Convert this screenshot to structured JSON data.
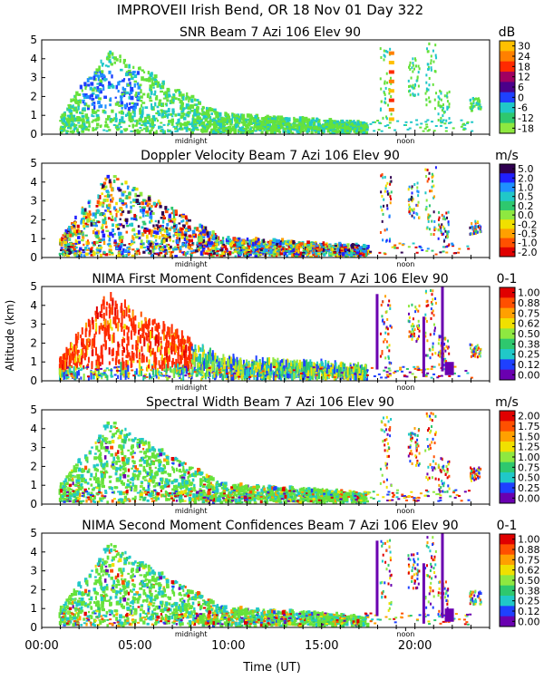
{
  "title": "IMPROVEII  Irish Bend, OR  18 Nov 01 Day 322",
  "y_axis_label": "Altitude (km)",
  "x_axis_label": "Time (UT)",
  "marker_midnight": "midnight",
  "marker_noon": "noon",
  "colors": {
    "background": "#ffffff",
    "axes": "#000000",
    "echo_green": "#66e23a",
    "echo_cyan": "#20c8c8",
    "echo_blue": "#1e40ff",
    "echo_red": "#ff2a00",
    "echo_purple": "#6a00b0"
  },
  "chart_data": [
    {
      "type": "heatmap",
      "panel": "snr",
      "title": "SNR Beam 7 Azi 106 Elev 90",
      "units": "dB",
      "xlim": [
        0,
        24
      ],
      "ylim": [
        0,
        5
      ],
      "x_ticks": [
        "00:00",
        "05:00",
        "10:00",
        "15:00",
        "20:00"
      ],
      "y_ticks": [
        "0",
        "1",
        "2",
        "3",
        "4",
        "5"
      ],
      "colorbar": {
        "labels": [
          "30",
          "24",
          "18",
          "12",
          "6",
          "0",
          "-6",
          "-12",
          "-18"
        ],
        "colors": [
          "#ffc000",
          "#ff8000",
          "#ff2a00",
          "#a00060",
          "#4b008a",
          "#1e40ff",
          "#20c8c8",
          "#2ec86e",
          "#8ee840"
        ]
      }
    },
    {
      "type": "heatmap",
      "panel": "doppler",
      "title": "Doppler Velocity Beam 7 Azi 106 Elev 90",
      "units": "m/s",
      "xlim": [
        0,
        24
      ],
      "ylim": [
        0,
        5
      ],
      "x_ticks": [
        "00:00",
        "05:00",
        "10:00",
        "15:00",
        "20:00"
      ],
      "y_ticks": [
        "0",
        "1",
        "2",
        "3",
        "4",
        "5"
      ],
      "colorbar": {
        "labels": [
          "5.0",
          "2.0",
          "1.0",
          "0.5",
          "0.2",
          "0.0",
          "-0.2",
          "-0.5",
          "-1.0",
          "-2.0"
        ],
        "colors": [
          "#300050",
          "#2020ff",
          "#1e90ff",
          "#20c8c8",
          "#2ec86e",
          "#8ee840",
          "#f0e000",
          "#ffa000",
          "#ff5000",
          "#e00000"
        ]
      }
    },
    {
      "type": "heatmap",
      "panel": "nima_first",
      "title": "NIMA First Moment Confidences Beam 7 Azi 106 Elev 90",
      "units": "0-1",
      "xlim": [
        0,
        24
      ],
      "ylim": [
        0,
        5
      ],
      "x_ticks": [
        "00:00",
        "05:00",
        "10:00",
        "15:00",
        "20:00"
      ],
      "y_ticks": [
        "0",
        "1",
        "2",
        "3",
        "4",
        "5"
      ],
      "colorbar": {
        "labels": [
          "1.00",
          "0.88",
          "0.75",
          "0.62",
          "0.50",
          "0.38",
          "0.25",
          "0.12",
          "0.00"
        ],
        "colors": [
          "#e00000",
          "#ff5000",
          "#ffa000",
          "#f0e000",
          "#8ee840",
          "#2ec86e",
          "#20c8c8",
          "#1e40ff",
          "#6a00b0"
        ]
      }
    },
    {
      "type": "heatmap",
      "panel": "spectral_width",
      "title": "Spectral Width Beam 7 Azi 106 Elev 90",
      "units": "m/s",
      "xlim": [
        0,
        24
      ],
      "ylim": [
        0,
        5
      ],
      "x_ticks": [
        "00:00",
        "05:00",
        "10:00",
        "15:00",
        "20:00"
      ],
      "y_ticks": [
        "0",
        "1",
        "2",
        "3",
        "4",
        "5"
      ],
      "colorbar": {
        "labels": [
          "2.00",
          "1.75",
          "1.50",
          "1.25",
          "1.00",
          "0.75",
          "0.50",
          "0.25",
          "0.00"
        ],
        "colors": [
          "#e00000",
          "#ff5000",
          "#ffa000",
          "#f0e000",
          "#8ee840",
          "#2ec86e",
          "#20c8c8",
          "#1e40ff",
          "#6a00b0"
        ]
      }
    },
    {
      "type": "heatmap",
      "panel": "nima_second",
      "title": "NIMA Second Moment Confidences Beam 7 Azi 106 Elev 90",
      "units": "0-1",
      "xlim": [
        0,
        24
      ],
      "ylim": [
        0,
        5
      ],
      "x_ticks": [
        "00:00",
        "05:00",
        "10:00",
        "15:00",
        "20:00"
      ],
      "y_ticks": [
        "0",
        "1",
        "2",
        "3",
        "4",
        "5"
      ],
      "colorbar": {
        "labels": [
          "1.00",
          "0.88",
          "0.75",
          "0.62",
          "0.50",
          "0.38",
          "0.25",
          "0.12",
          "0.00"
        ],
        "colors": [
          "#e00000",
          "#ff5000",
          "#ffa000",
          "#f0e000",
          "#8ee840",
          "#2ec86e",
          "#20c8c8",
          "#1e40ff",
          "#6a00b0"
        ]
      }
    }
  ]
}
